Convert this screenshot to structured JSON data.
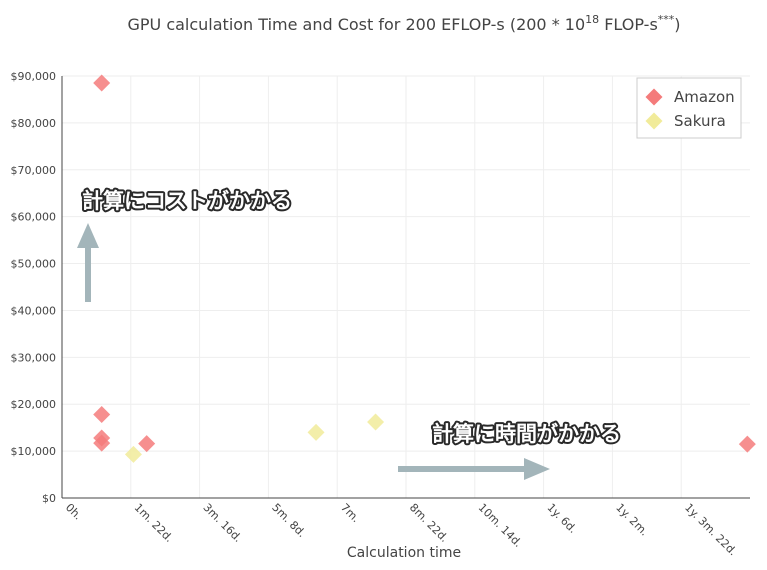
{
  "colors": {
    "amazon": "#f47b7b",
    "sakura": "#f1eb9a",
    "arrow": "#a3b5ba",
    "grid": "#eeeeee",
    "axis": "#444444"
  },
  "chart_data": {
    "type": "scatter",
    "title": "GPU calculation Time and Cost for 200 EFLOP-s (200 * 10",
    "title_sup": "18",
    "title_tail": " FLOP-s",
    "title_sup2": "***",
    "title_end": ")",
    "xlabel": "Calculation time",
    "ylabel": "",
    "x_unit": "days",
    "xlim": [
      0,
      520
    ],
    "ylim": [
      0,
      90000
    ],
    "y_ticks": [
      0,
      10000,
      20000,
      30000,
      40000,
      50000,
      60000,
      70000,
      80000,
      90000
    ],
    "y_tick_labels": [
      "$0",
      "$10,000",
      "$20,000",
      "$30,000",
      "$40,000",
      "$50,000",
      "$60,000",
      "$70,000",
      "$80,000",
      "$90,000"
    ],
    "x_ticks": [
      0,
      52,
      104,
      156,
      208,
      260,
      312,
      364,
      416,
      468
    ],
    "x_tick_labels": [
      "0h.",
      "1m. 22d.",
      "3m. 16d.",
      "5m. 8d.",
      "7m.",
      "8m. 22d.",
      "10m. 14d.",
      "1y. 6d.",
      "1y. 2m.",
      "1y. 3m. 22d."
    ],
    "grid": true,
    "legend_position": "top-right",
    "series": [
      {
        "name": "Amazon",
        "color": "#f47b7b",
        "points": [
          [
            30,
            88500
          ],
          [
            30,
            17800
          ],
          [
            30,
            12800
          ],
          [
            30,
            11700
          ],
          [
            64,
            11600
          ],
          [
            518,
            11500
          ]
        ]
      },
      {
        "name": "Sakura",
        "color": "#f1eb9a",
        "points": [
          [
            54,
            9300
          ],
          [
            192,
            14000
          ],
          [
            237,
            16200
          ]
        ]
      }
    ],
    "annotations": [
      {
        "text": "計算にコストがかかる"
      },
      {
        "text": "計算に時間がかかる"
      }
    ]
  }
}
